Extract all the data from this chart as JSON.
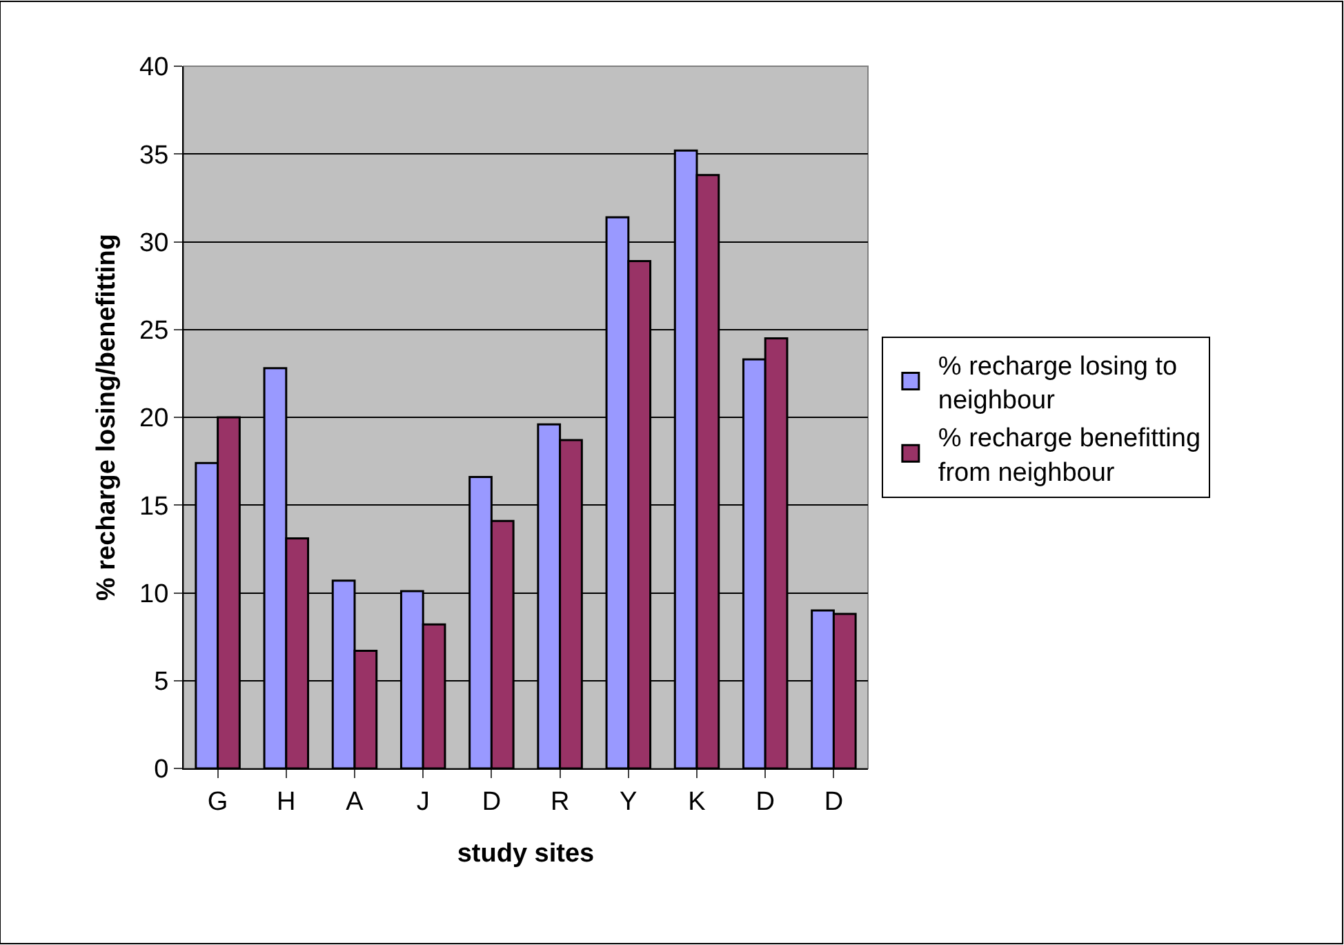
{
  "chart_data": {
    "type": "bar",
    "xlabel": "study sites",
    "ylabel": "% recharge losing/benefitting",
    "categories": [
      "G",
      "H",
      "A",
      "J",
      "D",
      "R",
      "Y",
      "K",
      "D",
      "D"
    ],
    "series": [
      {
        "name": "% recharge losing to neighbour",
        "color": "#9999ff",
        "values": [
          17.4,
          22.8,
          10.7,
          10.1,
          16.6,
          19.6,
          31.4,
          35.2,
          23.3,
          9.0
        ]
      },
      {
        "name": "% recharge benefitting from neighbour",
        "color": "#993366",
        "values": [
          20.0,
          13.1,
          6.7,
          8.2,
          14.1,
          18.7,
          28.9,
          33.8,
          24.5,
          8.8
        ]
      }
    ],
    "ylim": [
      0,
      40
    ],
    "yticks": [
      0,
      5,
      10,
      15,
      20,
      25,
      30,
      35,
      40
    ],
    "grid": "y",
    "legend": "right"
  }
}
